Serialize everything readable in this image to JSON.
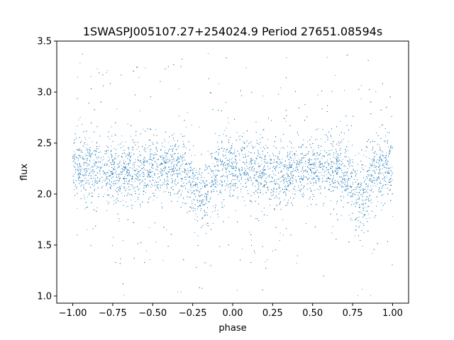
{
  "chart_data": {
    "type": "scatter",
    "title": "1SWASPJ005107.27+254024.9 Period 27651.08594s",
    "xlabel": "phase",
    "ylabel": "flux",
    "xlim": [
      -1.1,
      1.1
    ],
    "ylim": [
      0.93,
      3.5
    ],
    "xticks": [
      -1.0,
      -0.75,
      -0.5,
      -0.25,
      0.0,
      0.25,
      0.5,
      0.75,
      1.0
    ],
    "xtick_labels": [
      "−1.00",
      "−0.75",
      "−0.50",
      "−0.25",
      "0.00",
      "0.25",
      "0.50",
      "0.75",
      "1.00"
    ],
    "yticks": [
      1.0,
      1.5,
      2.0,
      2.5,
      3.0,
      3.5
    ],
    "ytick_labels": [
      "1.0",
      "1.5",
      "2.0",
      "2.5",
      "3.0",
      "3.5"
    ],
    "grid": false,
    "legend": "none",
    "point_color": "#1f77b4",
    "series": [
      {
        "x_range": [
          -1.0,
          1.0
        ],
        "mean_flux": 2.25,
        "flux_spread": 0.15,
        "dips": [
          {
            "phase": -0.2,
            "min_flux": 1.95
          },
          {
            "phase": 0.8,
            "min_flux": 1.95
          }
        ],
        "outlier_range": [
          1.0,
          3.4
        ]
      }
    ]
  }
}
